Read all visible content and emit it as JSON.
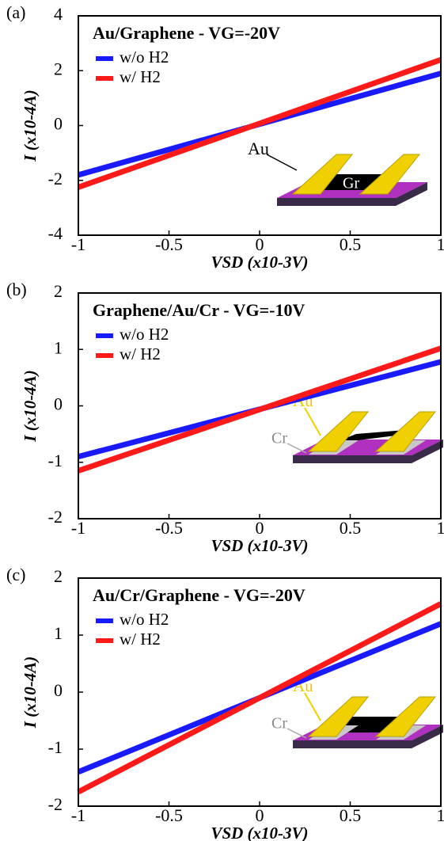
{
  "chart_data": [
    {
      "type": "line",
      "panel": "(a)",
      "title": "Au/Graphene -  VG=-20V",
      "x": [
        -1,
        1
      ],
      "series": [
        {
          "name": "w/o H2",
          "color": "#1a1aff",
          "values": [
            -1.8,
            1.9
          ]
        },
        {
          "name": "w/ H2",
          "color": "#ff1a1a",
          "values": [
            -2.25,
            2.4
          ]
        }
      ],
      "xlim": [
        -1,
        1
      ],
      "xticks": [
        -1,
        -0.5,
        0,
        0.5,
        1
      ],
      "ylim": [
        -4,
        4
      ],
      "yticks": [
        -4,
        -2,
        0,
        2,
        4
      ],
      "xlabel": "VSD (x10-3V)",
      "ylabel": "I (x10-4A)",
      "annotations": [
        "Au",
        "Gr"
      ]
    },
    {
      "type": "line",
      "panel": "(b)",
      "title": "Graphene/Au/Cr -  VG=-10V",
      "x": [
        -1,
        1
      ],
      "series": [
        {
          "name": "w/o H2",
          "color": "#1a1aff",
          "values": [
            -0.9,
            0.78
          ]
        },
        {
          "name": "w/ H2",
          "color": "#ff1a1a",
          "values": [
            -1.15,
            1.02
          ]
        }
      ],
      "xlim": [
        -1,
        1
      ],
      "xticks": [
        -1,
        -0.5,
        0,
        0.5,
        1
      ],
      "ylim": [
        -2,
        2
      ],
      "yticks": [
        -2,
        -1,
        0,
        1,
        2
      ],
      "xlabel": "VSD (x10-3V)",
      "ylabel": "I (x10-4A)",
      "annotations": [
        "Au",
        "Cr"
      ]
    },
    {
      "type": "line",
      "panel": "(c)",
      "title": "Au/Cr/Graphene -  VG=-20V",
      "x": [
        -1,
        1
      ],
      "series": [
        {
          "name": "w/o H2",
          "color": "#1a1aff",
          "values": [
            -1.4,
            1.2
          ]
        },
        {
          "name": "w/ H2",
          "color": "#ff1a1a",
          "values": [
            -1.75,
            1.55
          ]
        }
      ],
      "xlim": [
        -1,
        1
      ],
      "xticks": [
        -1,
        -0.5,
        0,
        0.5,
        1
      ],
      "ylim": [
        -2,
        2
      ],
      "yticks": [
        -2,
        -1,
        0,
        1,
        2
      ],
      "xlabel": "VSD (x10-3V)",
      "ylabel": "I (x10-4A)",
      "annotations": [
        "Au",
        "Cr"
      ]
    }
  ]
}
